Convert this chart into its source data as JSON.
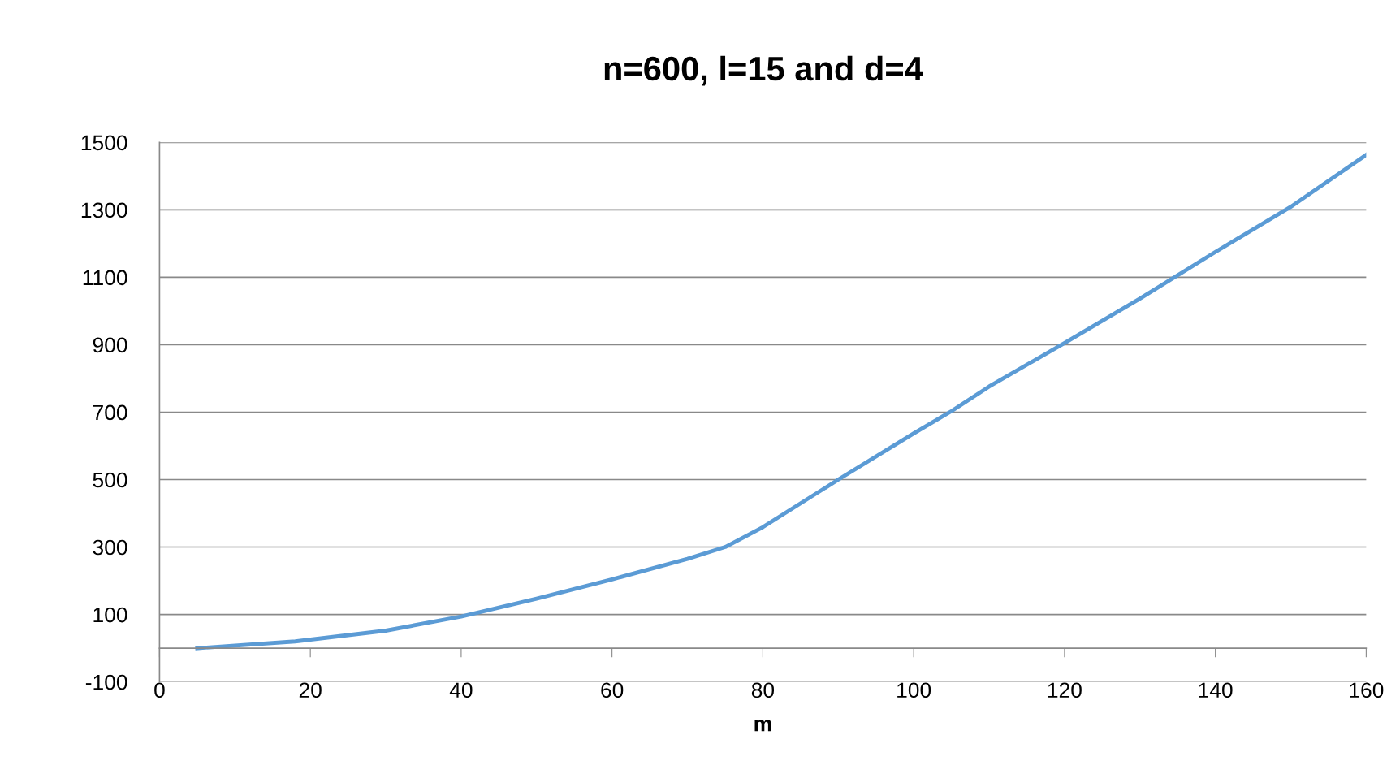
{
  "chart_data": {
    "type": "line",
    "title": "n=600, l=15 and d=4",
    "xlabel": "m",
    "x": [
      5,
      18,
      30,
      40,
      50,
      60,
      70,
      75,
      80,
      90,
      100,
      105,
      110,
      120,
      130,
      140,
      150,
      160
    ],
    "series": [
      {
        "color": "#5b9bd5",
        "values": [
          0,
          20,
          52,
          94,
          147,
          204,
          265,
          300,
          359,
          500,
          637,
          703,
          776,
          905,
          1037,
          1175,
          1309,
          1463
        ]
      }
    ],
    "xlim": [
      0,
      160
    ],
    "xticks": [
      0,
      20,
      40,
      60,
      80,
      100,
      120,
      140,
      160
    ],
    "ylim": [
      -100,
      1500
    ],
    "yticks": [
      -100,
      100,
      300,
      500,
      700,
      900,
      1100,
      1300,
      1500
    ],
    "grid": "y",
    "marker": "none",
    "line_style": "solid",
    "legend": false
  }
}
